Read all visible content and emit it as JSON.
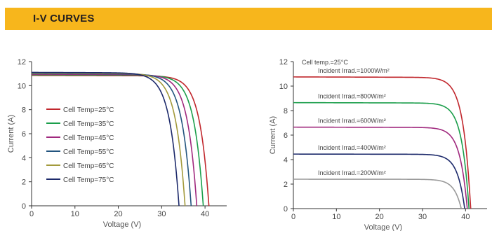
{
  "header": {
    "title": "I-V CURVES",
    "background": "#f7b61c"
  },
  "chart_data": [
    {
      "type": "line",
      "xlabel": "Voltage (V)",
      "ylabel": "Current (A)",
      "xlim": [
        0,
        45
      ],
      "ylim": [
        0,
        12
      ],
      "xticks": [
        0,
        10,
        20,
        30,
        40
      ],
      "yticks": [
        0,
        2,
        4,
        6,
        8,
        10,
        12
      ],
      "legend_position": "left-middle",
      "series": [
        {
          "name": "Cell Temp=25°C",
          "color": "#c1272d",
          "isc": 10.85,
          "voc": 40.9,
          "knee": 30.0
        },
        {
          "name": "Cell Temp=35°C",
          "color": "#1b9e4b",
          "isc": 10.9,
          "voc": 39.6,
          "knee": 28.6
        },
        {
          "name": "Cell Temp=45°C",
          "color": "#a0297e",
          "isc": 10.95,
          "voc": 38.1,
          "knee": 27.2
        },
        {
          "name": "Cell Temp=55°C",
          "color": "#23557f",
          "isc": 11.0,
          "voc": 36.8,
          "knee": 25.8
        },
        {
          "name": "Cell Temp=65°C",
          "color": "#a39a3c",
          "isc": 11.05,
          "voc": 35.4,
          "knee": 24.4
        },
        {
          "name": "Cell Temp=75°C",
          "color": "#1d2a6b",
          "isc": 11.1,
          "voc": 34.0,
          "knee": 22.9
        }
      ]
    },
    {
      "type": "line",
      "xlabel": "Voltage (V)",
      "ylabel": "Current (A)",
      "xlim": [
        0,
        45
      ],
      "ylim": [
        0,
        12
      ],
      "xticks": [
        0,
        10,
        20,
        30,
        40
      ],
      "yticks": [
        0,
        2,
        4,
        6,
        8,
        10,
        12
      ],
      "annotation": "Cell temp.=25°C",
      "series": [
        {
          "name": "Incident Irrad.=1000W/m²",
          "color": "#c1272d",
          "isc": 10.75,
          "voc": 41.2,
          "knee": 32.0
        },
        {
          "name": "Incident Irrad.=800W/m²",
          "color": "#1b9e4b",
          "isc": 8.65,
          "voc": 40.8,
          "knee": 32.0
        },
        {
          "name": "Incident Irrad.=600W/m²",
          "color": "#a0297e",
          "isc": 6.65,
          "voc": 40.4,
          "knee": 31.5
        },
        {
          "name": "Incident Irrad.=400W/m²",
          "color": "#1d2a6b",
          "isc": 4.45,
          "voc": 39.8,
          "knee": 31.0
        },
        {
          "name": "Incident Irrad.=200W/m²",
          "color": "#999999",
          "isc": 2.4,
          "voc": 39.0,
          "knee": 30.5
        }
      ]
    }
  ]
}
